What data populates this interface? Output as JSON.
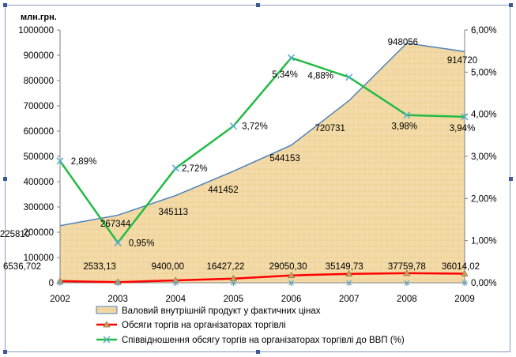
{
  "chart_data": {
    "type": "area+line",
    "ylabel_left": "млн.грн.",
    "categories": [
      "2002",
      "2003",
      "2004",
      "2005",
      "2006",
      "2007",
      "2008",
      "2009"
    ],
    "series": [
      {
        "name": "Валовий внутрішній продукт у фактичних цінах",
        "kind": "area",
        "axis": "left",
        "values": [
          225810,
          267344,
          345113,
          441452,
          544153,
          720731,
          948056,
          914720
        ],
        "labels": [
          "225810",
          "267344",
          "345113",
          "441452",
          "544153",
          "720731",
          "948056",
          "914720"
        ]
      },
      {
        "name": "Обсяги торгів на організаторах торгівлі",
        "kind": "line",
        "axis": "left",
        "values": [
          6536.702,
          2533.13,
          9400.0,
          16427.22,
          29050.3,
          35149.73,
          37759.78,
          36014.02
        ],
        "labels": [
          "6536,702",
          "2533,13",
          "9400,00",
          "16427,22",
          "29050,30",
          "35149,73",
          "37759,78",
          "36014,02"
        ]
      },
      {
        "name": "Співвідношення обсягу торгів на організаторах торгівлі до ВВП (%)",
        "kind": "line",
        "axis": "right",
        "values": [
          2.89,
          0.95,
          2.72,
          3.72,
          5.34,
          4.88,
          3.98,
          3.94
        ],
        "labels": [
          "2,89%",
          "0,95%",
          "2,72%",
          "3,72%",
          "5,34%",
          "4,88%",
          "3,98%",
          "3,94%"
        ]
      }
    ],
    "y_left": {
      "min": 0,
      "max": 1000000,
      "ticks": [
        "0",
        "100000",
        "200000",
        "300000",
        "400000",
        "500000",
        "600000",
        "700000",
        "800000",
        "900000",
        "1000000"
      ]
    },
    "y_right": {
      "min": 0,
      "max": 6,
      "ticks": [
        "0,00%",
        "1,00%",
        "2,00%",
        "3,00%",
        "4,00%",
        "5,00%",
        "6,00%"
      ]
    },
    "grid": false,
    "legend_position": "bottom",
    "colors": {
      "area_fill": "#f2d9a5",
      "area_line": "#4f81bd",
      "volume_line": "#ff0000",
      "volume_marker": "#c8a060",
      "ratio_line": "#22bb44",
      "ratio_marker": "#55aacc"
    }
  }
}
